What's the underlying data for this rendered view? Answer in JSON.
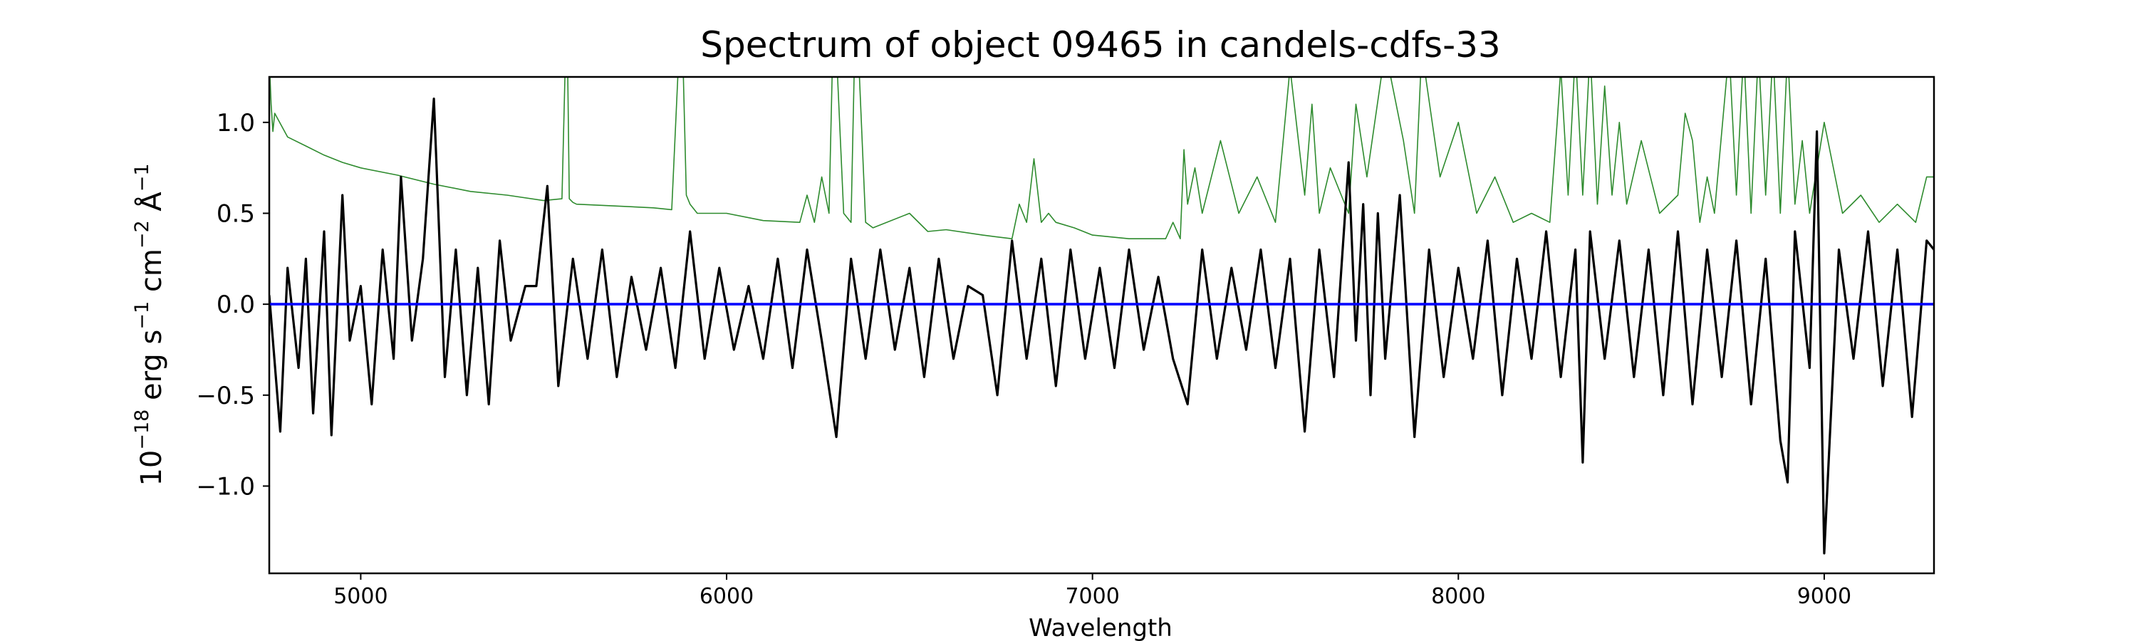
{
  "chart_data": {
    "type": "line",
    "title": "Spectrum of object 09465 in candels-cdfs-33",
    "xlabel": "Wavelength",
    "ylabel_parts": [
      "10",
      "−18",
      " erg s",
      "−1",
      " cm",
      "−2",
      " Å",
      "−1"
    ],
    "xlim": [
      4750,
      9300
    ],
    "ylim": [
      -1.48,
      1.25
    ],
    "xticks": [
      5000,
      6000,
      7000,
      8000,
      9000
    ],
    "xtick_labels": [
      "5000",
      "6000",
      "7000",
      "8000",
      "9000"
    ],
    "yticks": [
      -1.0,
      -0.5,
      0.0,
      0.5,
      1.0
    ],
    "ytick_labels": [
      "−1.0",
      "−0.5",
      "0.0",
      "0.5",
      "1.0"
    ],
    "grid": false,
    "legend": "none",
    "colors": {
      "flux": "#000000",
      "error": "#2e8b2e",
      "zero": "#0000ff",
      "axes": "#000000"
    },
    "series": [
      {
        "key": "flux",
        "x": [
          4750,
          4780,
          4800,
          4830,
          4850,
          4870,
          4900,
          4920,
          4950,
          4970,
          5000,
          5030,
          5060,
          5090,
          5110,
          5140,
          5170,
          5200,
          5230,
          5260,
          5290,
          5320,
          5350,
          5380,
          5410,
          5450,
          5480,
          5510,
          5540,
          5580,
          5620,
          5660,
          5700,
          5740,
          5780,
          5820,
          5860,
          5900,
          5940,
          5980,
          6020,
          6060,
          6100,
          6140,
          6180,
          6220,
          6260,
          6300,
          6340,
          6380,
          6420,
          6460,
          6500,
          6540,
          6580,
          6620,
          6660,
          6700,
          6740,
          6780,
          6820,
          6860,
          6900,
          6940,
          6980,
          7020,
          7060,
          7100,
          7140,
          7180,
          7220,
          7260,
          7300,
          7340,
          7380,
          7420,
          7460,
          7500,
          7540,
          7580,
          7620,
          7660,
          7700,
          7720,
          7740,
          7760,
          7780,
          7800,
          7840,
          7880,
          7920,
          7960,
          8000,
          8040,
          8080,
          8120,
          8160,
          8200,
          8240,
          8280,
          8320,
          8340,
          8360,
          8400,
          8440,
          8480,
          8520,
          8560,
          8600,
          8640,
          8680,
          8720,
          8760,
          8800,
          8840,
          8880,
          8900,
          8920,
          8960,
          8980,
          9000,
          9040,
          9080,
          9120,
          9160,
          9200,
          9240,
          9280,
          9300
        ],
        "y": [
          0.05,
          -0.7,
          0.2,
          -0.35,
          0.25,
          -0.6,
          0.4,
          -0.72,
          0.6,
          -0.2,
          0.1,
          -0.55,
          0.3,
          -0.3,
          0.7,
          -0.2,
          0.25,
          1.13,
          -0.4,
          0.3,
          -0.5,
          0.2,
          -0.55,
          0.35,
          -0.2,
          0.1,
          0.1,
          0.65,
          -0.45,
          0.25,
          -0.3,
          0.3,
          -0.4,
          0.15,
          -0.25,
          0.2,
          -0.35,
          0.4,
          -0.3,
          0.2,
          -0.25,
          0.1,
          -0.3,
          0.25,
          -0.35,
          0.3,
          -0.2,
          -0.73,
          0.25,
          -0.3,
          0.3,
          -0.25,
          0.2,
          -0.4,
          0.25,
          -0.3,
          0.1,
          0.05,
          -0.5,
          0.35,
          -0.3,
          0.25,
          -0.45,
          0.3,
          -0.3,
          0.2,
          -0.35,
          0.3,
          -0.25,
          0.15,
          -0.3,
          -0.55,
          0.3,
          -0.3,
          0.2,
          -0.25,
          0.3,
          -0.35,
          0.25,
          -0.7,
          0.3,
          -0.4,
          0.78,
          -0.2,
          0.55,
          -0.5,
          0.5,
          -0.3,
          0.6,
          -0.73,
          0.3,
          -0.4,
          0.2,
          -0.3,
          0.35,
          -0.5,
          0.25,
          -0.3,
          0.4,
          -0.4,
          0.3,
          -0.87,
          0.4,
          -0.3,
          0.35,
          -0.4,
          0.3,
          -0.5,
          0.4,
          -0.55,
          0.3,
          -0.4,
          0.35,
          -0.55,
          0.25,
          -0.75,
          -0.98,
          0.4,
          -0.35,
          0.95,
          -1.37,
          0.3,
          -0.3,
          0.4,
          -0.45,
          0.3,
          -0.62,
          0.35,
          0.3
        ]
      },
      {
        "key": "error",
        "x": [
          4750,
          4755,
          4760,
          4765,
          4800,
          4850,
          4900,
          4950,
          5000,
          5100,
          5200,
          5300,
          5400,
          5500,
          5550,
          5560,
          5565,
          5570,
          5580,
          5590,
          5700,
          5800,
          5850,
          5870,
          5880,
          5890,
          5900,
          5920,
          6000,
          6100,
          6200,
          6220,
          6240,
          6260,
          6280,
          6290,
          6300,
          6320,
          6340,
          6350,
          6360,
          6380,
          6400,
          6500,
          6550,
          6600,
          6700,
          6780,
          6800,
          6820,
          6840,
          6860,
          6880,
          6900,
          6950,
          7000,
          7100,
          7200,
          7220,
          7240,
          7250,
          7260,
          7280,
          7300,
          7350,
          7400,
          7450,
          7500,
          7540,
          7560,
          7580,
          7600,
          7620,
          7650,
          7700,
          7720,
          7750,
          7800,
          7850,
          7880,
          7900,
          7950,
          8000,
          8050,
          8100,
          8150,
          8200,
          8250,
          8270,
          8280,
          8300,
          8320,
          8340,
          8360,
          8380,
          8400,
          8420,
          8440,
          8460,
          8500,
          8550,
          8600,
          8620,
          8640,
          8660,
          8680,
          8700,
          8740,
          8760,
          8780,
          8800,
          8820,
          8840,
          8860,
          8880,
          8900,
          8920,
          8940,
          8960,
          9000,
          9050,
          9100,
          9150,
          9200,
          9250,
          9280,
          9300
        ],
        "y": [
          1.35,
          1.1,
          0.95,
          1.05,
          0.92,
          0.87,
          0.82,
          0.78,
          0.75,
          0.71,
          0.66,
          0.62,
          0.6,
          0.57,
          0.58,
          1.4,
          1.4,
          0.58,
          0.56,
          0.55,
          0.54,
          0.53,
          0.52,
          1.4,
          1.4,
          0.6,
          0.55,
          0.5,
          0.5,
          0.46,
          0.45,
          0.6,
          0.45,
          0.7,
          0.5,
          1.4,
          1.4,
          0.5,
          0.45,
          1.4,
          1.4,
          0.45,
          0.42,
          0.5,
          0.4,
          0.41,
          0.38,
          0.36,
          0.55,
          0.45,
          0.8,
          0.45,
          0.5,
          0.45,
          0.42,
          0.38,
          0.36,
          0.36,
          0.45,
          0.36,
          0.85,
          0.55,
          0.75,
          0.5,
          0.9,
          0.5,
          0.7,
          0.45,
          1.3,
          0.95,
          0.6,
          1.1,
          0.5,
          0.75,
          0.5,
          1.1,
          0.7,
          1.4,
          0.9,
          0.5,
          1.4,
          0.7,
          1.0,
          0.5,
          0.7,
          0.45,
          0.5,
          0.45,
          1.0,
          1.3,
          0.6,
          1.4,
          0.6,
          1.4,
          0.55,
          1.2,
          0.6,
          1.0,
          0.55,
          0.9,
          0.5,
          0.6,
          1.05,
          0.9,
          0.45,
          0.7,
          0.5,
          1.4,
          0.6,
          1.4,
          0.5,
          1.4,
          0.6,
          1.4,
          0.5,
          1.4,
          0.55,
          0.9,
          0.5,
          1.0,
          0.5,
          0.6,
          0.45,
          0.55,
          0.45,
          0.7,
          0.7
        ]
      },
      {
        "key": "zero",
        "x": [
          4750,
          9300
        ],
        "y": [
          0,
          0
        ]
      }
    ]
  }
}
